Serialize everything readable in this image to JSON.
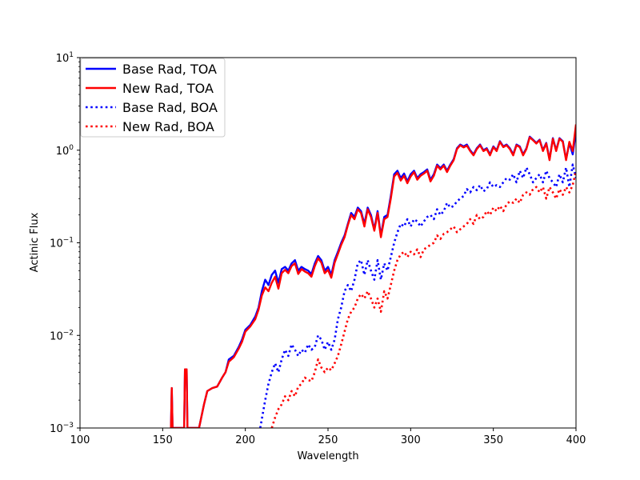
{
  "chart_data": {
    "type": "line",
    "xlabel": "Wavelength",
    "ylabel": "Actinic Flux",
    "xlim": [
      100,
      400
    ],
    "ylim": [
      0.001,
      10
    ],
    "yscale": "log",
    "grid": false,
    "legend_position": "top-left",
    "x_ticks": [
      "100",
      "150",
      "200",
      "250",
      "300",
      "350",
      "400"
    ],
    "y_ticks": [
      {
        "base": "10",
        "exp": "−3",
        "value": 0.001
      },
      {
        "base": "10",
        "exp": "−2",
        "value": 0.01
      },
      {
        "base": "10",
        "exp": "−1",
        "value": 0.1
      },
      {
        "base": "10",
        "exp": "0",
        "value": 1
      },
      {
        "base": "10",
        "exp": "1",
        "value": 10
      }
    ],
    "series": [
      {
        "name": "Base Rad, TOA",
        "color": "#0000ff",
        "style": "solid",
        "x": [
          155,
          155.5,
          156,
          163,
          163.5,
          164.5,
          165,
          172,
          175,
          177,
          180,
          183,
          186,
          188,
          190,
          193,
          196,
          198,
          200,
          203,
          206,
          208,
          210,
          212,
          214,
          216,
          218,
          220,
          222,
          224,
          226,
          228,
          230,
          232,
          234,
          236,
          238,
          240,
          242,
          244,
          246,
          248,
          250,
          252,
          254,
          256,
          258,
          260,
          262,
          264,
          266,
          268,
          270,
          272,
          274,
          276,
          278,
          280,
          282,
          284,
          286,
          288,
          290,
          292,
          294,
          296,
          298,
          300,
          302,
          304,
          306,
          308,
          310,
          312,
          314,
          316,
          318,
          320,
          322,
          324,
          326,
          328,
          330,
          332,
          334,
          336,
          338,
          340,
          342,
          344,
          346,
          348,
          350,
          352,
          354,
          356,
          358,
          360,
          362,
          364,
          366,
          368,
          370,
          372,
          374,
          376,
          378,
          380,
          382,
          384,
          386,
          388,
          390,
          392,
          394,
          396,
          398,
          400
        ],
        "y": [
          0.001,
          0.0027,
          0.001,
          0.001,
          0.0043,
          0.0043,
          0.001,
          0.001,
          0.0018,
          0.0025,
          0.0027,
          0.0028,
          0.0035,
          0.004,
          0.0055,
          0.006,
          0.0075,
          0.009,
          0.0115,
          0.013,
          0.016,
          0.02,
          0.03,
          0.04,
          0.035,
          0.045,
          0.05,
          0.037,
          0.052,
          0.055,
          0.05,
          0.06,
          0.065,
          0.05,
          0.055,
          0.052,
          0.05,
          0.046,
          0.06,
          0.072,
          0.065,
          0.05,
          0.055,
          0.045,
          0.065,
          0.08,
          0.1,
          0.12,
          0.16,
          0.21,
          0.19,
          0.24,
          0.22,
          0.16,
          0.24,
          0.2,
          0.14,
          0.22,
          0.12,
          0.19,
          0.2,
          0.32,
          0.55,
          0.6,
          0.5,
          0.56,
          0.46,
          0.55,
          0.6,
          0.5,
          0.55,
          0.58,
          0.62,
          0.48,
          0.55,
          0.7,
          0.64,
          0.7,
          0.6,
          0.7,
          0.8,
          1.05,
          1.15,
          1.1,
          1.15,
          1.0,
          0.9,
          1.05,
          1.15,
          1.0,
          1.05,
          0.9,
          1.1,
          1.0,
          1.25,
          1.1,
          1.15,
          1.05,
          0.9,
          1.15,
          1.1,
          0.9,
          1.05,
          1.4,
          1.3,
          1.2,
          1.3,
          1.0,
          1.2,
          0.8,
          1.35,
          1.0,
          1.35,
          1.25,
          0.8,
          1.2,
          0.9,
          1.6
        ]
      },
      {
        "name": "New Rad, TOA",
        "color": "#ff0000",
        "style": "solid",
        "x": [
          155,
          155.5,
          156,
          163,
          163.5,
          164.5,
          165,
          172,
          175,
          177,
          180,
          183,
          186,
          188,
          190,
          193,
          196,
          198,
          200,
          203,
          206,
          208,
          210,
          212,
          214,
          216,
          218,
          220,
          222,
          224,
          226,
          228,
          230,
          232,
          234,
          236,
          238,
          240,
          242,
          244,
          246,
          248,
          250,
          252,
          254,
          256,
          258,
          260,
          262,
          264,
          266,
          268,
          270,
          272,
          274,
          276,
          278,
          280,
          282,
          284,
          286,
          288,
          290,
          292,
          294,
          296,
          298,
          300,
          302,
          304,
          306,
          308,
          310,
          312,
          314,
          316,
          318,
          320,
          322,
          324,
          326,
          328,
          330,
          332,
          334,
          336,
          338,
          340,
          342,
          344,
          346,
          348,
          350,
          352,
          354,
          356,
          358,
          360,
          362,
          364,
          366,
          368,
          370,
          372,
          374,
          376,
          378,
          380,
          382,
          384,
          386,
          388,
          390,
          392,
          394,
          396,
          398,
          400
        ],
        "y": [
          0.001,
          0.0027,
          0.001,
          0.001,
          0.0043,
          0.0043,
          0.001,
          0.001,
          0.0018,
          0.0025,
          0.0027,
          0.0028,
          0.0035,
          0.004,
          0.0052,
          0.0058,
          0.0072,
          0.0085,
          0.011,
          0.0125,
          0.015,
          0.019,
          0.027,
          0.033,
          0.03,
          0.037,
          0.043,
          0.032,
          0.047,
          0.051,
          0.047,
          0.056,
          0.06,
          0.046,
          0.052,
          0.049,
          0.047,
          0.043,
          0.056,
          0.068,
          0.061,
          0.047,
          0.051,
          0.042,
          0.061,
          0.076,
          0.095,
          0.115,
          0.155,
          0.2,
          0.18,
          0.23,
          0.21,
          0.15,
          0.23,
          0.19,
          0.135,
          0.21,
          0.115,
          0.18,
          0.19,
          0.3,
          0.52,
          0.57,
          0.47,
          0.53,
          0.44,
          0.52,
          0.58,
          0.48,
          0.53,
          0.56,
          0.6,
          0.46,
          0.53,
          0.68,
          0.62,
          0.68,
          0.58,
          0.68,
          0.78,
          1.03,
          1.13,
          1.07,
          1.12,
          0.98,
          0.88,
          1.03,
          1.13,
          0.98,
          1.03,
          0.88,
          1.08,
          0.98,
          1.23,
          1.08,
          1.13,
          1.03,
          0.88,
          1.13,
          1.08,
          0.88,
          1.03,
          1.38,
          1.28,
          1.18,
          1.28,
          0.98,
          1.18,
          0.78,
          1.33,
          0.98,
          1.33,
          1.23,
          0.78,
          1.23,
          0.98,
          1.9
        ]
      },
      {
        "name": "Base Rad, BOA",
        "color": "#0000ff",
        "style": "dotted",
        "x": [
          209,
          212,
          214,
          216,
          218,
          220,
          222,
          224,
          226,
          228,
          230,
          232,
          234,
          236,
          238,
          240,
          242,
          244,
          246,
          248,
          250,
          252,
          254,
          256,
          258,
          260,
          262,
          264,
          266,
          268,
          270,
          272,
          274,
          276,
          278,
          280,
          282,
          284,
          286,
          288,
          290,
          292,
          294,
          296,
          298,
          300,
          302,
          304,
          306,
          308,
          310,
          312,
          314,
          316,
          318,
          320,
          322,
          324,
          326,
          328,
          330,
          332,
          334,
          336,
          338,
          340,
          342,
          344,
          346,
          348,
          350,
          352,
          354,
          356,
          358,
          360,
          362,
          364,
          366,
          368,
          370,
          372,
          374,
          376,
          378,
          380,
          382,
          384,
          386,
          388,
          390,
          392,
          394,
          396,
          398,
          400
        ],
        "y": [
          0.001,
          0.002,
          0.003,
          0.004,
          0.005,
          0.004,
          0.0055,
          0.007,
          0.006,
          0.008,
          0.007,
          0.006,
          0.007,
          0.0065,
          0.008,
          0.007,
          0.0075,
          0.01,
          0.009,
          0.007,
          0.0085,
          0.007,
          0.009,
          0.015,
          0.02,
          0.03,
          0.035,
          0.03,
          0.04,
          0.06,
          0.065,
          0.045,
          0.065,
          0.05,
          0.04,
          0.065,
          0.04,
          0.06,
          0.05,
          0.07,
          0.1,
          0.13,
          0.16,
          0.15,
          0.18,
          0.15,
          0.18,
          0.17,
          0.15,
          0.17,
          0.19,
          0.2,
          0.18,
          0.23,
          0.2,
          0.22,
          0.27,
          0.24,
          0.25,
          0.28,
          0.3,
          0.32,
          0.38,
          0.35,
          0.4,
          0.37,
          0.42,
          0.36,
          0.38,
          0.45,
          0.4,
          0.42,
          0.4,
          0.45,
          0.5,
          0.48,
          0.55,
          0.45,
          0.6,
          0.5,
          0.65,
          0.55,
          0.45,
          0.5,
          0.55,
          0.45,
          0.6,
          0.5,
          0.45,
          0.4,
          0.55,
          0.45,
          0.65,
          0.4,
          0.7,
          0.5
        ]
      },
      {
        "name": "New Rad, BOA",
        "color": "#ff0000",
        "style": "dotted",
        "x": [
          216,
          218,
          220,
          222,
          224,
          226,
          228,
          230,
          232,
          234,
          236,
          238,
          240,
          242,
          244,
          246,
          248,
          250,
          252,
          254,
          256,
          258,
          260,
          262,
          264,
          266,
          268,
          270,
          272,
          274,
          276,
          278,
          280,
          282,
          284,
          286,
          288,
          290,
          292,
          294,
          296,
          298,
          300,
          302,
          304,
          306,
          308,
          310,
          312,
          314,
          316,
          318,
          320,
          322,
          324,
          326,
          328,
          330,
          332,
          334,
          336,
          338,
          340,
          342,
          344,
          346,
          348,
          350,
          352,
          354,
          356,
          358,
          360,
          362,
          364,
          366,
          368,
          370,
          372,
          374,
          376,
          378,
          380,
          382,
          384,
          386,
          388,
          390,
          392,
          394,
          396,
          398,
          400
        ],
        "y": [
          0.001,
          0.0013,
          0.0016,
          0.0018,
          0.0022,
          0.002,
          0.0025,
          0.0022,
          0.0028,
          0.003,
          0.0035,
          0.0033,
          0.0032,
          0.004,
          0.0055,
          0.0045,
          0.004,
          0.0045,
          0.0042,
          0.005,
          0.006,
          0.008,
          0.011,
          0.015,
          0.018,
          0.02,
          0.025,
          0.028,
          0.025,
          0.03,
          0.025,
          0.02,
          0.025,
          0.018,
          0.03,
          0.025,
          0.035,
          0.05,
          0.065,
          0.075,
          0.08,
          0.07,
          0.08,
          0.075,
          0.085,
          0.07,
          0.085,
          0.09,
          0.095,
          0.1,
          0.12,
          0.11,
          0.125,
          0.13,
          0.14,
          0.15,
          0.13,
          0.14,
          0.15,
          0.16,
          0.18,
          0.16,
          0.2,
          0.18,
          0.19,
          0.22,
          0.2,
          0.24,
          0.22,
          0.25,
          0.22,
          0.26,
          0.28,
          0.27,
          0.3,
          0.27,
          0.33,
          0.35,
          0.33,
          0.38,
          0.4,
          0.35,
          0.4,
          0.3,
          0.4,
          0.35,
          0.3,
          0.38,
          0.33,
          0.4,
          0.35,
          0.42,
          0.6
        ]
      }
    ]
  }
}
